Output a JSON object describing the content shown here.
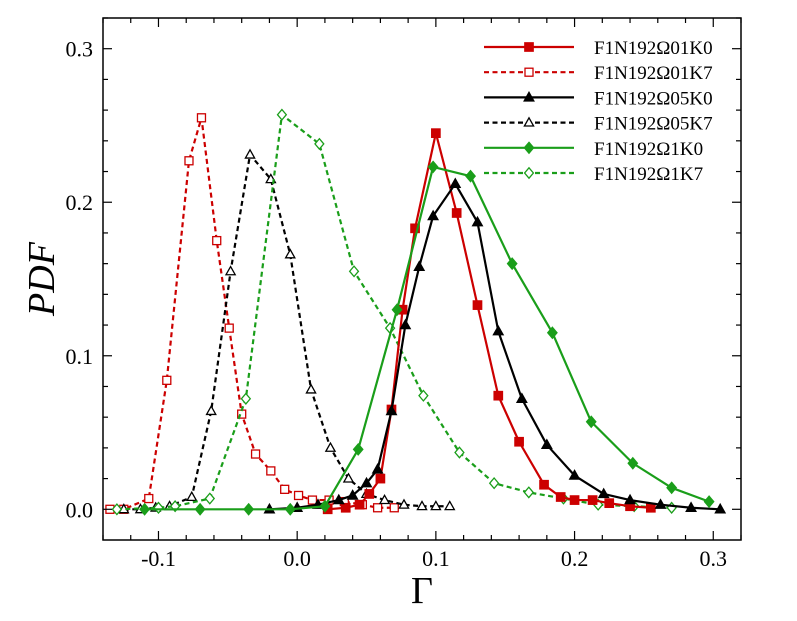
{
  "chart_data": {
    "type": "line",
    "xlabel": "Γ",
    "ylabel": "PDF",
    "xlim": [
      -0.14,
      0.32
    ],
    "ylim": [
      -0.02,
      0.32
    ],
    "xticks": [
      -0.1,
      0.0,
      0.1,
      0.2,
      0.3
    ],
    "xtick_labels": [
      "-0.1",
      "0.0",
      "0.1",
      "0.2",
      "0.3"
    ],
    "yticks": [
      0.0,
      0.1,
      0.2,
      0.3
    ],
    "ytick_labels": [
      "0.0",
      "0.1",
      "0.2",
      "0.3"
    ],
    "grid": false,
    "legend_position": "top-right",
    "series": [
      {
        "name": "F1N192Ω01K0",
        "color": "#cc0000",
        "dash": "solid",
        "marker": "square",
        "filled": true,
        "x": [
          0.022,
          0.035,
          0.045,
          0.052,
          0.06,
          0.068,
          0.076,
          0.085,
          0.1,
          0.115,
          0.13,
          0.145,
          0.16,
          0.178,
          0.19,
          0.2,
          0.213,
          0.225,
          0.24,
          0.255
        ],
        "y": [
          0.0,
          0.001,
          0.003,
          0.01,
          0.02,
          0.065,
          0.13,
          0.183,
          0.245,
          0.193,
          0.133,
          0.074,
          0.044,
          0.016,
          0.008,
          0.006,
          0.006,
          0.004,
          0.002,
          0.001
        ]
      },
      {
        "name": "F1N192Ω01K7",
        "color": "#cc0000",
        "dash": "dashed",
        "marker": "square",
        "filled": false,
        "x": [
          -0.135,
          -0.125,
          -0.107,
          -0.094,
          -0.078,
          -0.069,
          -0.058,
          -0.049,
          -0.04,
          -0.03,
          -0.019,
          -0.009,
          0.001,
          0.011,
          0.023,
          0.034,
          0.047,
          0.058,
          0.07
        ],
        "y": [
          0.0,
          0.0,
          0.007,
          0.084,
          0.227,
          0.255,
          0.175,
          0.118,
          0.062,
          0.036,
          0.025,
          0.013,
          0.009,
          0.006,
          0.006,
          0.005,
          0.003,
          0.001,
          0.001
        ]
      },
      {
        "name": "F1N192Ω05K0",
        "color": "#000000",
        "dash": "solid",
        "marker": "triangle",
        "filled": true,
        "x": [
          -0.02,
          0.0,
          0.015,
          0.03,
          0.04,
          0.05,
          0.058,
          0.068,
          0.078,
          0.088,
          0.098,
          0.114,
          0.13,
          0.145,
          0.162,
          0.18,
          0.2,
          0.221,
          0.24,
          0.262,
          0.284,
          0.305
        ],
        "y": [
          0.0,
          0.001,
          0.003,
          0.006,
          0.009,
          0.017,
          0.026,
          0.064,
          0.12,
          0.158,
          0.191,
          0.212,
          0.187,
          0.116,
          0.072,
          0.042,
          0.022,
          0.01,
          0.006,
          0.003,
          0.001,
          0.0
        ]
      },
      {
        "name": "F1N192Ω05K7",
        "color": "#000000",
        "dash": "dashed",
        "marker": "triangle",
        "filled": false,
        "x": [
          -0.125,
          -0.113,
          -0.102,
          -0.092,
          -0.076,
          -0.062,
          -0.048,
          -0.034,
          -0.019,
          -0.005,
          0.01,
          0.024,
          0.037,
          0.05,
          0.063,
          0.077,
          0.09,
          0.1,
          0.11
        ],
        "y": [
          0.0,
          0.0,
          0.001,
          0.002,
          0.008,
          0.064,
          0.155,
          0.231,
          0.215,
          0.166,
          0.078,
          0.04,
          0.02,
          0.01,
          0.006,
          0.003,
          0.002,
          0.002,
          0.002
        ]
      },
      {
        "name": "F1N192Ω1K0",
        "color": "#1a9e1a",
        "dash": "solid",
        "marker": "diamond",
        "filled": true,
        "x": [
          -0.11,
          -0.07,
          -0.035,
          -0.005,
          0.02,
          0.044,
          0.072,
          0.098,
          0.125,
          0.155,
          0.184,
          0.212,
          0.242,
          0.27,
          0.297
        ],
        "y": [
          0.0,
          0.0,
          0.0,
          0.0,
          0.002,
          0.039,
          0.13,
          0.223,
          0.217,
          0.16,
          0.115,
          0.057,
          0.03,
          0.014,
          0.005
        ]
      },
      {
        "name": "F1N192Ω1K7",
        "color": "#1a9e1a",
        "dash": "dashed",
        "marker": "diamond",
        "filled": false,
        "x": [
          -0.13,
          -0.1,
          -0.088,
          -0.063,
          -0.037,
          -0.011,
          0.016,
          0.041,
          0.067,
          0.091,
          0.117,
          0.142,
          0.167,
          0.192,
          0.217,
          0.243,
          0.27
        ],
        "y": [
          0.0,
          0.001,
          0.002,
          0.007,
          0.072,
          0.257,
          0.238,
          0.155,
          0.118,
          0.074,
          0.037,
          0.017,
          0.011,
          0.007,
          0.003,
          0.002,
          0.001
        ]
      }
    ]
  }
}
